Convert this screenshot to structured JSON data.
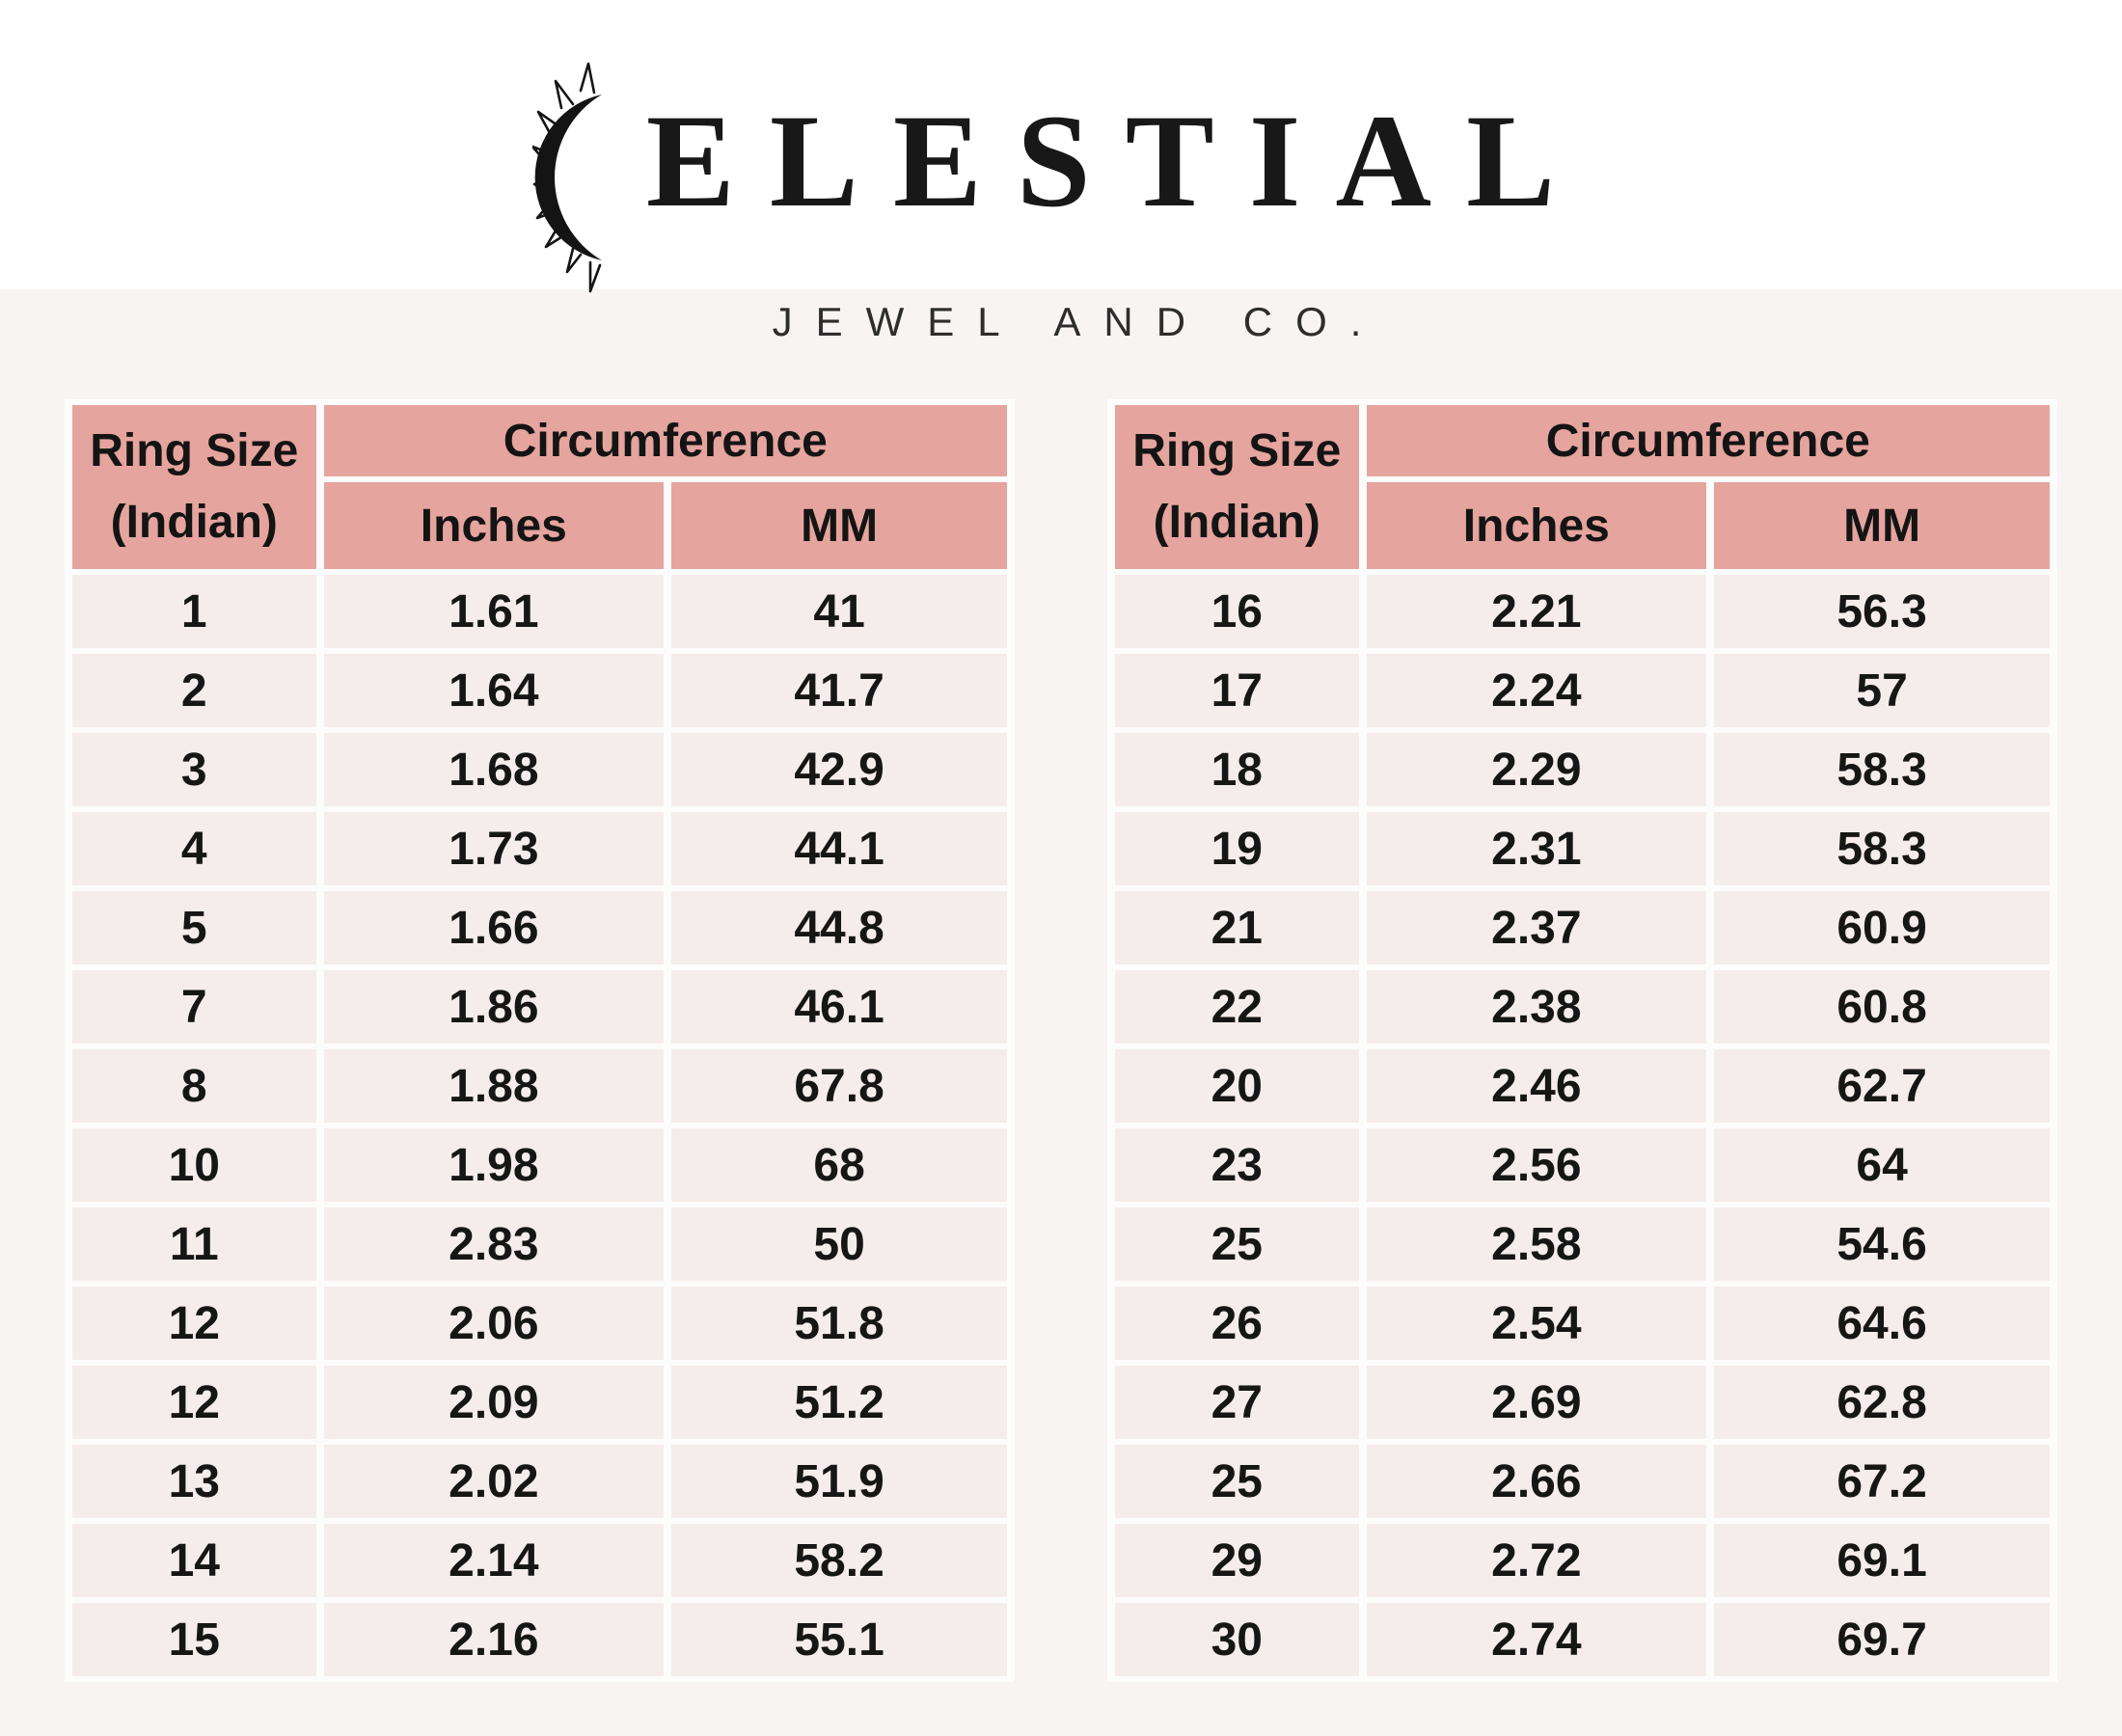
{
  "brand": {
    "wordmark_rest": "ELESTIAL",
    "tagline": "JEWEL AND CO.",
    "logo_icon": "sun-crescent-icon"
  },
  "columns": {
    "ring_size_line1": "Ring Size",
    "ring_size_line2": "(Indian)",
    "circumference": "Circumference",
    "inches": "Inches",
    "mm": "MM"
  },
  "colors": {
    "header_bg": "#e5a49d",
    "row_bg": "#f5edeb",
    "band_bg": "#f7f4f3",
    "text": "#161616"
  },
  "left_table": {
    "rows": [
      [
        "1",
        "1.61",
        "41"
      ],
      [
        "2",
        "1.64",
        "41.7"
      ],
      [
        "3",
        "1.68",
        "42.9"
      ],
      [
        "4",
        "1.73",
        "44.1"
      ],
      [
        "5",
        "1.66",
        "44.8"
      ],
      [
        "7",
        "1.86",
        "46.1"
      ],
      [
        "8",
        "1.88",
        "67.8"
      ],
      [
        "10",
        "1.98",
        "68"
      ],
      [
        "11",
        "2.83",
        "50"
      ],
      [
        "12",
        "2.06",
        "51.8"
      ],
      [
        "12",
        "2.09",
        "51.2"
      ],
      [
        "13",
        "2.02",
        "51.9"
      ],
      [
        "14",
        "2.14",
        "58.2"
      ],
      [
        "15",
        "2.16",
        "55.1"
      ]
    ]
  },
  "right_table": {
    "rows": [
      [
        "16",
        "2.21",
        "56.3"
      ],
      [
        "17",
        "2.24",
        "57"
      ],
      [
        "18",
        "2.29",
        "58.3"
      ],
      [
        "19",
        "2.31",
        "58.3"
      ],
      [
        "21",
        "2.37",
        "60.9"
      ],
      [
        "22",
        "2.38",
        "60.8"
      ],
      [
        "20",
        "2.46",
        "62.7"
      ],
      [
        "23",
        "2.56",
        "64"
      ],
      [
        "25",
        "2.58",
        "54.6"
      ],
      [
        "26",
        "2.54",
        "64.6"
      ],
      [
        "27",
        "2.69",
        "62.8"
      ],
      [
        "25",
        "2.66",
        "67.2"
      ],
      [
        "29",
        "2.72",
        "69.1"
      ],
      [
        "30",
        "2.74",
        "69.7"
      ]
    ]
  }
}
